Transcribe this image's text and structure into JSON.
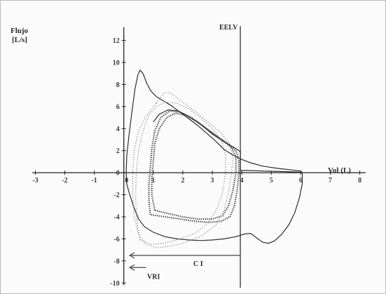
{
  "chart_data": {
    "type": "line",
    "ylabel_line1": "Flujo",
    "ylabel_line2": "[L/s]",
    "xlabel": "Vol (L)",
    "xlim": [
      -3.2,
      8.2
    ],
    "ylim": [
      -10.3,
      13.5
    ],
    "x_ticks": [
      -3,
      -2,
      -1,
      0,
      1,
      2,
      3,
      4,
      5,
      6,
      7,
      8
    ],
    "y_ticks": [
      -10,
      -8,
      -6,
      -4,
      -2,
      0,
      2,
      4,
      6,
      8,
      10,
      12
    ],
    "grid": false,
    "annotations": {
      "eelv_label": "EELV",
      "eelv_x": 3.95,
      "ci_label": "C I",
      "ci_y": -7.5,
      "ci_from": 3.95,
      "ci_to": 0.2,
      "vri_label": "VRI",
      "vri_y": -8.6,
      "vri_from": 0.75,
      "vri_to": 0.2
    },
    "series": [
      {
        "style": "solid",
        "points": [
          [
            0.08,
            0
          ],
          [
            0.1,
            1.5
          ],
          [
            0.18,
            3.5
          ],
          [
            0.28,
            5.6
          ],
          [
            0.38,
            7.6
          ],
          [
            0.48,
            8.9
          ],
          [
            0.55,
            9.3
          ],
          [
            0.65,
            9.0
          ],
          [
            0.78,
            8.1
          ],
          [
            0.92,
            7.4
          ],
          [
            1.1,
            6.9
          ],
          [
            1.35,
            6.5
          ],
          [
            1.6,
            6.1
          ],
          [
            1.9,
            5.5
          ],
          [
            2.2,
            4.9
          ],
          [
            2.5,
            4.3
          ],
          [
            2.8,
            3.6
          ],
          [
            3.1,
            2.9
          ],
          [
            3.4,
            2.1
          ],
          [
            3.7,
            1.6
          ],
          [
            4.0,
            1.2
          ],
          [
            4.3,
            0.9
          ],
          [
            4.7,
            0.6
          ],
          [
            5.2,
            0.4
          ],
          [
            5.7,
            0.25
          ],
          [
            6.0,
            0.15
          ],
          [
            6.05,
            0
          ],
          [
            6.05,
            -1.0
          ],
          [
            5.95,
            -2.3
          ],
          [
            5.8,
            -3.6
          ],
          [
            5.6,
            -4.7
          ],
          [
            5.35,
            -5.6
          ],
          [
            5.1,
            -6.2
          ],
          [
            4.9,
            -6.4
          ],
          [
            4.7,
            -6.3
          ],
          [
            4.5,
            -5.9
          ],
          [
            4.3,
            -5.5
          ],
          [
            4.1,
            -5.55
          ],
          [
            3.8,
            -5.8
          ],
          [
            3.4,
            -6.0
          ],
          [
            3.0,
            -6.1
          ],
          [
            2.6,
            -6.15
          ],
          [
            2.2,
            -6.1
          ],
          [
            1.8,
            -6.0
          ],
          [
            1.4,
            -5.8
          ],
          [
            1.0,
            -5.4
          ],
          [
            0.7,
            -4.9
          ],
          [
            0.5,
            -4.2
          ],
          [
            0.35,
            -3.2
          ],
          [
            0.2,
            -2.0
          ],
          [
            0.1,
            -1.0
          ],
          [
            0.08,
            0
          ]
        ]
      },
      {
        "style": "solid",
        "points": [
          [
            1.0,
            4.6
          ],
          [
            1.2,
            5.3
          ],
          [
            1.5,
            5.7
          ],
          [
            1.85,
            5.6
          ],
          [
            2.2,
            5.1
          ],
          [
            2.6,
            4.4
          ],
          [
            3.0,
            3.5
          ],
          [
            3.4,
            2.8
          ],
          [
            3.8,
            2.2
          ],
          [
            3.95,
            1.9
          ],
          [
            3.95,
            1.0
          ],
          [
            3.95,
            0.2
          ],
          [
            4.2,
            0.2
          ],
          [
            4.8,
            0.15
          ],
          [
            5.5,
            0.1
          ],
          [
            6.0,
            0.05
          ]
        ]
      },
      {
        "style": "dense",
        "points": [
          [
            0.9,
            -3.8
          ],
          [
            0.85,
            -2.5
          ],
          [
            0.85,
            -1
          ],
          [
            0.9,
            0.5
          ],
          [
            0.95,
            2.2
          ],
          [
            1.05,
            3.8
          ],
          [
            1.25,
            5.0
          ],
          [
            1.55,
            5.6
          ],
          [
            1.9,
            5.5
          ],
          [
            2.3,
            5.0
          ],
          [
            2.7,
            4.2
          ],
          [
            3.1,
            3.4
          ],
          [
            3.5,
            2.7
          ],
          [
            3.8,
            2.0
          ],
          [
            3.9,
            1.2
          ],
          [
            3.9,
            0
          ],
          [
            3.85,
            -1.5
          ],
          [
            3.75,
            -3.0
          ],
          [
            3.6,
            -4.0
          ],
          [
            3.3,
            -4.4
          ],
          [
            2.9,
            -4.5
          ],
          [
            2.4,
            -4.4
          ],
          [
            1.9,
            -4.2
          ],
          [
            1.4,
            -4.0
          ],
          [
            0.9,
            -3.8
          ]
        ]
      },
      {
        "style": "dense",
        "points": [
          [
            1.05,
            -3.4
          ],
          [
            0.95,
            -2
          ],
          [
            0.95,
            -0.5
          ],
          [
            1.0,
            1.0
          ],
          [
            1.05,
            2.6
          ],
          [
            1.2,
            4.0
          ],
          [
            1.45,
            5.0
          ],
          [
            1.75,
            5.4
          ],
          [
            2.1,
            5.2
          ],
          [
            2.5,
            4.6
          ],
          [
            2.9,
            3.8
          ],
          [
            3.3,
            3.0
          ],
          [
            3.65,
            2.3
          ],
          [
            3.8,
            1.4
          ],
          [
            3.8,
            0
          ],
          [
            3.7,
            -1.6
          ],
          [
            3.55,
            -3.0
          ],
          [
            3.35,
            -3.9
          ],
          [
            3.0,
            -4.2
          ],
          [
            2.5,
            -4.2
          ],
          [
            2.0,
            -4.0
          ],
          [
            1.5,
            -3.7
          ],
          [
            1.05,
            -3.4
          ]
        ]
      },
      {
        "style": "dotted",
        "points": [
          [
            1.1,
            6.3
          ],
          [
            1.35,
            7.2
          ],
          [
            1.55,
            7.3
          ],
          [
            1.8,
            6.8
          ],
          [
            2.1,
            6.2
          ],
          [
            2.5,
            5.4
          ],
          [
            2.9,
            4.5
          ],
          [
            3.3,
            3.6
          ],
          [
            3.6,
            2.6
          ],
          [
            3.7,
            1.2
          ],
          [
            3.65,
            0
          ],
          [
            3.55,
            -1.8
          ],
          [
            3.4,
            -3.4
          ],
          [
            3.1,
            -4.8
          ],
          [
            2.6,
            -5.8
          ],
          [
            2.0,
            -6.4
          ],
          [
            1.5,
            -6.7
          ],
          [
            1.1,
            -6.8
          ],
          [
            0.75,
            -6.5
          ],
          [
            0.5,
            -5.6
          ],
          [
            0.35,
            -4.0
          ],
          [
            0.3,
            -2.0
          ],
          [
            0.3,
            0
          ],
          [
            0.35,
            2.0
          ],
          [
            0.5,
            3.8
          ],
          [
            0.75,
            5.1
          ],
          [
            1.1,
            6.3
          ]
        ]
      },
      {
        "style": "dotted",
        "points": [
          [
            0.55,
            -6.1
          ],
          [
            0.45,
            -4.5
          ],
          [
            0.4,
            -2.5
          ],
          [
            0.42,
            0
          ],
          [
            0.5,
            2.0
          ],
          [
            0.65,
            3.8
          ],
          [
            0.85,
            5.2
          ],
          [
            1.1,
            6.0
          ],
          [
            1.4,
            6.4
          ],
          [
            1.8,
            6.3
          ],
          [
            2.2,
            5.8
          ],
          [
            2.6,
            5.0
          ],
          [
            3.0,
            4.0
          ],
          [
            3.3,
            3.0
          ],
          [
            3.45,
            1.6
          ],
          [
            3.45,
            0
          ],
          [
            3.35,
            -1.8
          ],
          [
            3.15,
            -3.3
          ],
          [
            2.85,
            -4.6
          ],
          [
            2.4,
            -5.5
          ],
          [
            1.9,
            -6.0
          ],
          [
            1.4,
            -6.4
          ],
          [
            0.95,
            -6.5
          ],
          [
            0.55,
            -6.1
          ]
        ]
      }
    ]
  }
}
